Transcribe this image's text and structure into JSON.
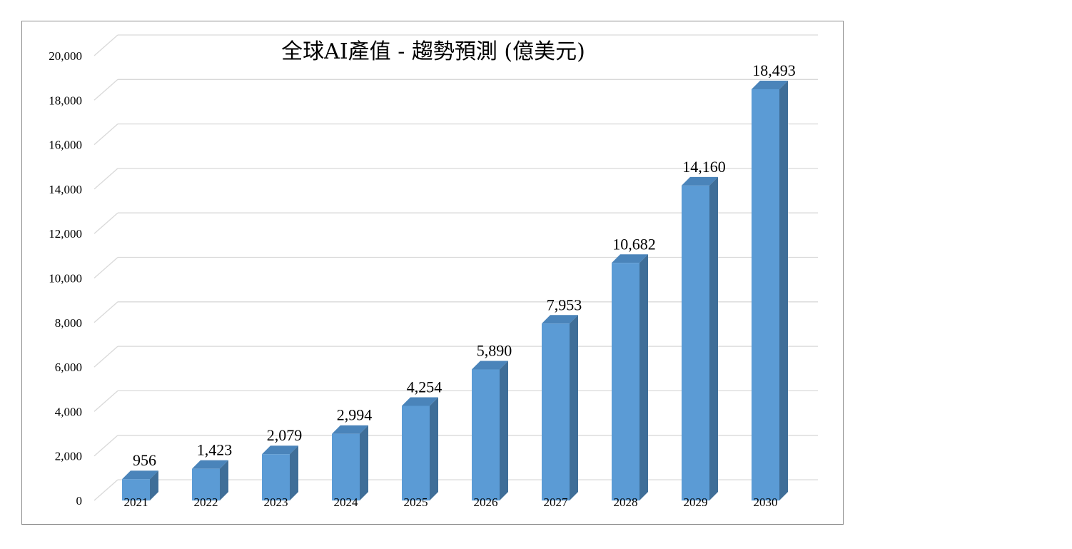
{
  "chart_data": {
    "type": "bar",
    "title": "全球AI產值 - 趨勢預測 (億美元)",
    "categories": [
      "2021",
      "2022",
      "2023",
      "2024",
      "2025",
      "2026",
      "2027",
      "2028",
      "2029",
      "2030"
    ],
    "values": [
      956,
      1423,
      2079,
      2994,
      4254,
      5890,
      7953,
      10682,
      14160,
      18493
    ],
    "data_labels": [
      "956",
      "1,423",
      "2,079",
      "2,994",
      "4,254",
      "5,890",
      "7,953",
      "10,682",
      "14,160",
      "18,493"
    ],
    "y_ticks": [
      0,
      2000,
      4000,
      6000,
      8000,
      10000,
      12000,
      14000,
      16000,
      18000,
      20000
    ],
    "y_tick_labels": [
      "0",
      "2,000",
      "4,000",
      "6,000",
      "8,000",
      "10,000",
      "12,000",
      "14,000",
      "16,000",
      "18,000",
      "20,000"
    ],
    "ylim": [
      0,
      20000
    ],
    "grid": true,
    "legend": "none",
    "style": "3d-column",
    "colors": {
      "bar_front": "#5b9bd5",
      "bar_side": "#3f6e98",
      "bar_top": "#4a84ba",
      "grid": "#d9d9d9",
      "border": "#8c8c8c"
    }
  }
}
